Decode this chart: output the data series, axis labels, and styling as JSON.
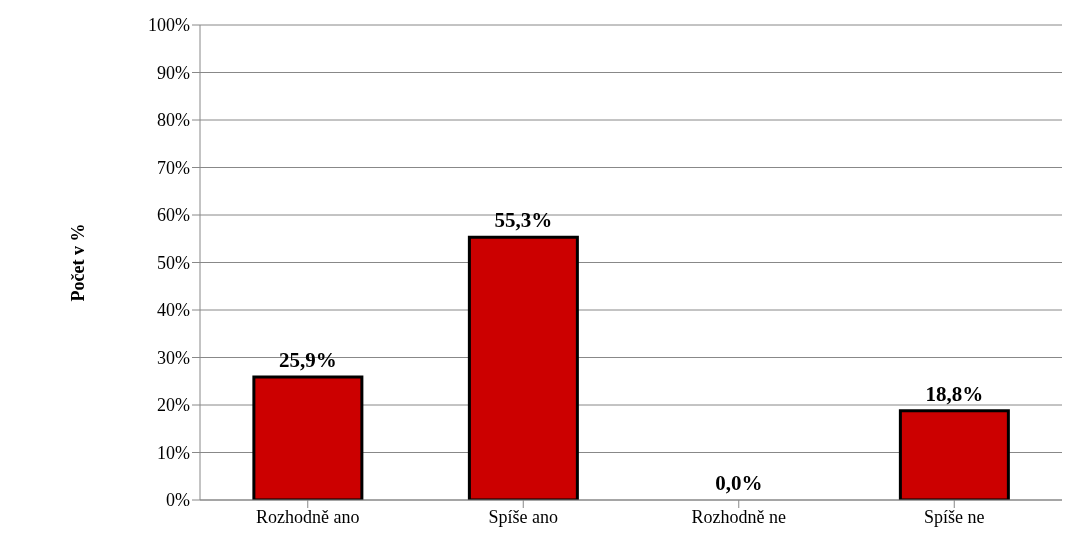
{
  "chart_data": {
    "type": "bar",
    "ylabel": "Počet v %",
    "categories": [
      "Rozhodně ano",
      "Spíše ano",
      "Rozhodně ne",
      "Spíše ne"
    ],
    "values": [
      25.9,
      55.3,
      0.0,
      18.8
    ],
    "value_labels": [
      "25,9%",
      "55,3%",
      "0,0%",
      "18,8%"
    ],
    "color": "#cc0000",
    "ylim": [
      0,
      100
    ],
    "yticks": [
      {
        "value": 0,
        "label": "0%"
      },
      {
        "value": 10,
        "label": "10%"
      },
      {
        "value": 20,
        "label": "20%"
      },
      {
        "value": 30,
        "label": "30%"
      },
      {
        "value": 40,
        "label": "40%"
      },
      {
        "value": 50,
        "label": "50%"
      },
      {
        "value": 60,
        "label": "60%"
      },
      {
        "value": 70,
        "label": "70%"
      },
      {
        "value": 80,
        "label": "80%"
      },
      {
        "value": 90,
        "label": "90%"
      },
      {
        "value": 100,
        "label": "100%"
      }
    ],
    "grid": "y",
    "legend": false
  }
}
